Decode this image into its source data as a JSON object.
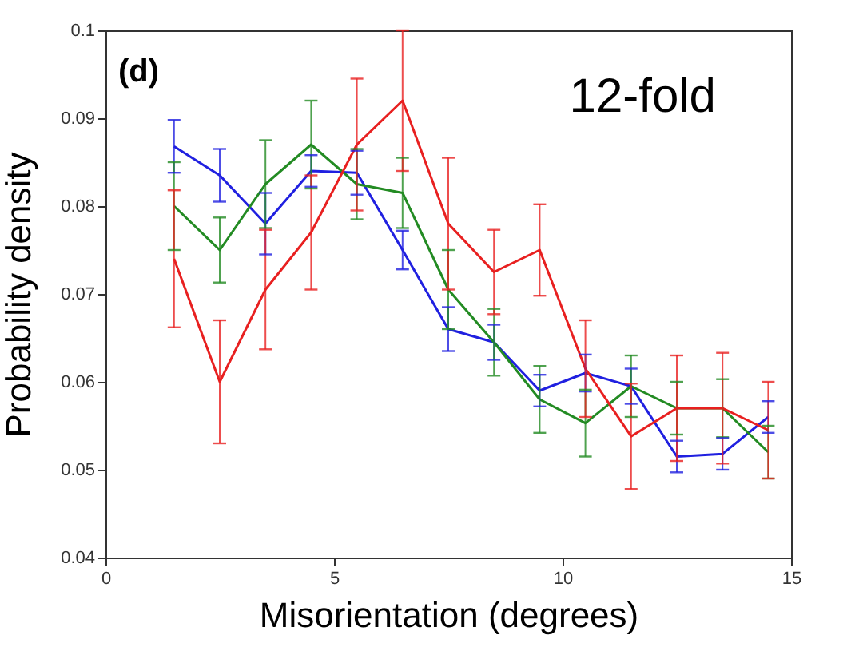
{
  "chart_data": {
    "type": "line",
    "xlabel": "Misorientation (degrees)",
    "ylabel": "Probability density",
    "annotations": [
      "(d)",
      "12-fold"
    ],
    "x": [
      1.5,
      2.5,
      3.5,
      4.5,
      5.5,
      6.5,
      7.5,
      8.5,
      9.5,
      10.5,
      11.5,
      12.5,
      13.5,
      14.5
    ],
    "series": [
      {
        "color": "#2020e0",
        "values": [
          0.0868,
          0.0835,
          0.078,
          0.084,
          0.0838,
          0.075,
          0.066,
          0.0645,
          0.059,
          0.061,
          0.0595,
          0.0515,
          0.0518,
          0.056
        ],
        "errors": [
          0.003,
          0.003,
          0.0035,
          0.0018,
          0.0025,
          0.0022,
          0.0025,
          0.002,
          0.0018,
          0.0021,
          0.002,
          0.0018,
          0.0018,
          0.0018
        ]
      },
      {
        "color": "#238b23",
        "values": [
          0.08,
          0.075,
          0.0825,
          0.087,
          0.0825,
          0.0815,
          0.0705,
          0.0645,
          0.058,
          0.0553,
          0.0595,
          0.057,
          0.057,
          0.052
        ],
        "errors": [
          0.005,
          0.0037,
          0.005,
          0.005,
          0.004,
          0.004,
          0.0045,
          0.0038,
          0.0038,
          0.0038,
          0.0035,
          0.003,
          0.0033,
          0.003
        ]
      },
      {
        "color": "#e82020",
        "values": [
          0.074,
          0.06,
          0.0705,
          0.077,
          0.087,
          0.092,
          0.078,
          0.0725,
          0.075,
          0.0615,
          0.0538,
          0.057,
          0.057,
          0.0545
        ],
        "errors": [
          0.0078,
          0.007,
          0.0068,
          0.0065,
          0.0075,
          0.008,
          0.0075,
          0.0048,
          0.0052,
          0.0055,
          0.006,
          0.006,
          0.0063,
          0.0055
        ]
      }
    ],
    "xlim": [
      0,
      15
    ],
    "xticks": [
      0,
      5,
      10,
      15
    ],
    "ylim": [
      0.04,
      0.1
    ],
    "yticks": [
      0.04,
      0.05,
      0.06,
      0.07,
      0.08,
      0.09,
      0.1
    ],
    "grid": false,
    "marker": "none",
    "line_style": "solid"
  }
}
